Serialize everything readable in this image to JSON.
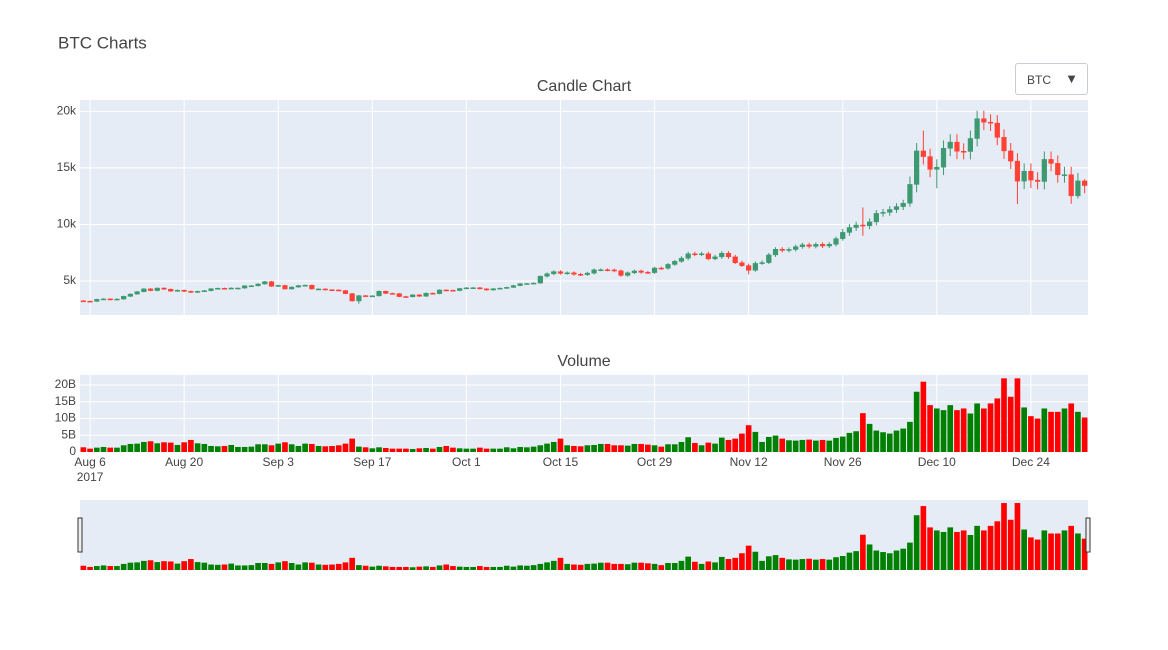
{
  "title": "BTC Charts",
  "controls": {
    "dropdown": "BTC"
  },
  "chart_data": [
    {
      "type": "candlestick",
      "title": "Candle Chart",
      "x": [
        "2017-08-05",
        "2017-08-06",
        "2017-08-07",
        "2017-08-08",
        "2017-08-09",
        "2017-08-10",
        "2017-08-11",
        "2017-08-12",
        "2017-08-13",
        "2017-08-14",
        "2017-08-15",
        "2017-08-16",
        "2017-08-17",
        "2017-08-18",
        "2017-08-19",
        "2017-08-20",
        "2017-08-21",
        "2017-08-22",
        "2017-08-23",
        "2017-08-24",
        "2017-08-25",
        "2017-08-26",
        "2017-08-27",
        "2017-08-28",
        "2017-08-29",
        "2017-08-30",
        "2017-08-31",
        "2017-09-01",
        "2017-09-02",
        "2017-09-03",
        "2017-09-04",
        "2017-09-05",
        "2017-09-06",
        "2017-09-07",
        "2017-09-08",
        "2017-09-09",
        "2017-09-10",
        "2017-09-11",
        "2017-09-12",
        "2017-09-13",
        "2017-09-14",
        "2017-09-15",
        "2017-09-16",
        "2017-09-17",
        "2017-09-18",
        "2017-09-19",
        "2017-09-20",
        "2017-09-21",
        "2017-09-22",
        "2017-09-23",
        "2017-09-24",
        "2017-09-25",
        "2017-09-26",
        "2017-09-27",
        "2017-09-28",
        "2017-09-29",
        "2017-09-30",
        "2017-10-01",
        "2017-10-02",
        "2017-10-03",
        "2017-10-04",
        "2017-10-05",
        "2017-10-06",
        "2017-10-07",
        "2017-10-08",
        "2017-10-09",
        "2017-10-10",
        "2017-10-11",
        "2017-10-12",
        "2017-10-13",
        "2017-10-14",
        "2017-10-15",
        "2017-10-16",
        "2017-10-17",
        "2017-10-18",
        "2017-10-19",
        "2017-10-20",
        "2017-10-21",
        "2017-10-22",
        "2017-10-23",
        "2017-10-24",
        "2017-10-25",
        "2017-10-26",
        "2017-10-27",
        "2017-10-28",
        "2017-10-29",
        "2017-10-30",
        "2017-10-31",
        "2017-11-01",
        "2017-11-02",
        "2017-11-03",
        "2017-11-04",
        "2017-11-05",
        "2017-11-06",
        "2017-11-07",
        "2017-11-08",
        "2017-11-09",
        "2017-11-10",
        "2017-11-11",
        "2017-11-12",
        "2017-11-13",
        "2017-11-14",
        "2017-11-15",
        "2017-11-16",
        "2017-11-17",
        "2017-11-18",
        "2017-11-19",
        "2017-11-20",
        "2017-11-21",
        "2017-11-22",
        "2017-11-23",
        "2017-11-24",
        "2017-11-25",
        "2017-11-26",
        "2017-11-27",
        "2017-11-28",
        "2017-11-29",
        "2017-11-30",
        "2017-12-01",
        "2017-12-02",
        "2017-12-03",
        "2017-12-04",
        "2017-12-05",
        "2017-12-06",
        "2017-12-07",
        "2017-12-08",
        "2017-12-09",
        "2017-12-10",
        "2017-12-11",
        "2017-12-12",
        "2017-12-13",
        "2017-12-14",
        "2017-12-15",
        "2017-12-16",
        "2017-12-17",
        "2017-12-18",
        "2017-12-19",
        "2017-12-20",
        "2017-12-21",
        "2017-12-22",
        "2017-12-23",
        "2017-12-24",
        "2017-12-25",
        "2017-12-26",
        "2017-12-27",
        "2017-12-28",
        "2017-12-29",
        "2017-12-30",
        "2017-12-31",
        "2018-01-01"
      ],
      "open": [
        3250,
        3220,
        3210,
        3380,
        3420,
        3340,
        3410,
        3650,
        3850,
        4060,
        4310,
        4160,
        4380,
        4280,
        4110,
        4190,
        4090,
        4000,
        4090,
        4150,
        4320,
        4360,
        4350,
        4380,
        4380,
        4580,
        4580,
        4740,
        4950,
        4540,
        4610,
        4300,
        4470,
        4600,
        4630,
        4300,
        4300,
        4230,
        4210,
        4160,
        3890,
        3240,
        3710,
        3690,
        3690,
        4100,
        3910,
        3890,
        3630,
        3610,
        3780,
        3660,
        3930,
        3890,
        4210,
        4190,
        4160,
        4340,
        4400,
        4410,
        4310,
        4210,
        4320,
        4370,
        4440,
        4600,
        4770,
        4780,
        4820,
        5430,
        5640,
        5830,
        5680,
        5730,
        5600,
        5570,
        5700,
        5990,
        6000,
        5980,
        5900,
        5500,
        5730,
        5890,
        5770,
        5750,
        6150,
        6130,
        6470,
        6740,
        7020,
        7410,
        7380,
        7410,
        6960,
        7140,
        7460,
        7140,
        6620,
        6360,
        5950,
        6560,
        6630,
        7310,
        7810,
        7710,
        7790,
        8040,
        8200,
        8070,
        8240,
        8100,
        8250,
        8750,
        9300,
        9730,
        9950,
        9880,
        10230,
        10980,
        11070,
        11320,
        11580,
        11880,
        13540,
        16500,
        16000,
        14870,
        15060,
        16730,
        17280,
        16470,
        16450,
        17600,
        19350,
        19040,
        18960,
        17700,
        16500,
        15600,
        13830,
        14700,
        13920,
        13800,
        15750,
        15400,
        14390,
        14400,
        12530,
        13850
      ],
      "high": [
        3310,
        3280,
        3440,
        3480,
        3480,
        3470,
        3710,
        3910,
        4120,
        4370,
        4370,
        4440,
        4440,
        4340,
        4250,
        4250,
        4150,
        4150,
        4210,
        4380,
        4420,
        4420,
        4440,
        4440,
        4640,
        4640,
        4800,
        5010,
        5010,
        4670,
        4670,
        4530,
        4660,
        4690,
        4690,
        4360,
        4360,
        4290,
        4270,
        4220,
        3950,
        3770,
        3770,
        3750,
        4160,
        4160,
        3970,
        3950,
        3690,
        3840,
        3840,
        3990,
        3990,
        4270,
        4270,
        4250,
        4400,
        4460,
        4470,
        4470,
        4370,
        4380,
        4430,
        4500,
        4660,
        4830,
        4840,
        4880,
        5490,
        5760,
        5950,
        5950,
        5850,
        5850,
        5720,
        5820,
        6110,
        6120,
        6120,
        6100,
        6020,
        5850,
        6010,
        6010,
        5890,
        6270,
        6270,
        6590,
        6860,
        7200,
        7590,
        7590,
        7590,
        7590,
        7320,
        7640,
        7640,
        7320,
        6800,
        6540,
        6740,
        6810,
        7490,
        7990,
        7990,
        7970,
        8220,
        8380,
        8380,
        8420,
        8420,
        8430,
        8930,
        9600,
        10030,
        10250,
        11500,
        10530,
        11280,
        11370,
        11620,
        11880,
        12180,
        14240,
        17200,
        18300,
        16700,
        15760,
        17430,
        17980,
        17980,
        17170,
        18300,
        20050,
        20050,
        19740,
        19660,
        18400,
        17200,
        16300,
        15400,
        15400,
        14620,
        16450,
        16450,
        16100,
        15100,
        15100,
        14550,
        14000
      ],
      "low": [
        3160,
        3150,
        3150,
        3320,
        3280,
        3280,
        3350,
        3590,
        3790,
        4000,
        4100,
        4100,
        4220,
        4050,
        4050,
        4030,
        3940,
        3940,
        4030,
        4090,
        4260,
        4290,
        4290,
        4320,
        4320,
        4520,
        4520,
        4680,
        4480,
        4480,
        4240,
        4240,
        4410,
        4540,
        4240,
        4240,
        4170,
        4150,
        4100,
        3830,
        3180,
        3000,
        3630,
        3630,
        3630,
        3850,
        3830,
        3570,
        3550,
        3550,
        3600,
        3600,
        3830,
        3830,
        4130,
        4100,
        4100,
        4280,
        4340,
        4250,
        4150,
        4150,
        4260,
        4310,
        4380,
        4540,
        4710,
        4720,
        4760,
        5310,
        5520,
        5560,
        5560,
        5480,
        5450,
        5450,
        5580,
        5870,
        5860,
        5780,
        5380,
        5380,
        5610,
        5650,
        5630,
        5630,
        6010,
        6010,
        6350,
        6620,
        6840,
        7200,
        7200,
        6840,
        6840,
        6960,
        6960,
        6500,
        6240,
        5600,
        5830,
        6440,
        6510,
        7130,
        7530,
        7530,
        7610,
        7860,
        7890,
        7890,
        7920,
        7920,
        8070,
        8570,
        9000,
        9430,
        9000,
        9580,
        9930,
        10680,
        10770,
        11020,
        11280,
        11580,
        12840,
        15300,
        14170,
        13200,
        14360,
        16030,
        15770,
        15750,
        15750,
        16900,
        18340,
        18260,
        17000,
        15800,
        14900,
        11800,
        13130,
        13220,
        13100,
        13100,
        14700,
        13690,
        13690,
        11830,
        12300,
        12750
      ],
      "close": [
        3220,
        3210,
        3380,
        3420,
        3340,
        3410,
        3650,
        3850,
        4060,
        4310,
        4160,
        4380,
        4280,
        4110,
        4190,
        4090,
        4000,
        4090,
        4150,
        4320,
        4360,
        4350,
        4380,
        4380,
        4580,
        4580,
        4740,
        4950,
        4540,
        4610,
        4300,
        4470,
        4600,
        4630,
        4300,
        4300,
        4230,
        4210,
        4160,
        3890,
        3240,
        3710,
        3690,
        3690,
        4100,
        3910,
        3890,
        3630,
        3610,
        3780,
        3660,
        3930,
        3890,
        4210,
        4190,
        4160,
        4340,
        4400,
        4410,
        4310,
        4210,
        4320,
        4370,
        4440,
        4600,
        4770,
        4780,
        4820,
        5430,
        5640,
        5830,
        5680,
        5730,
        5600,
        5570,
        5700,
        5990,
        6000,
        5980,
        5900,
        5500,
        5730,
        5890,
        5770,
        5750,
        6150,
        6130,
        6470,
        6740,
        7020,
        7410,
        7380,
        7410,
        6960,
        7140,
        7460,
        7140,
        6620,
        6360,
        5950,
        6560,
        6630,
        7310,
        7810,
        7710,
        7790,
        8040,
        8200,
        8070,
        8240,
        8100,
        8250,
        8750,
        9300,
        9730,
        9950,
        9880,
        10230,
        10980,
        11070,
        11320,
        11580,
        11880,
        13540,
        16500,
        16000,
        14870,
        15060,
        16730,
        17280,
        16470,
        16450,
        17600,
        19350,
        19040,
        18960,
        17700,
        16500,
        15600,
        13830,
        14700,
        13920,
        13800,
        15750,
        15400,
        14390,
        14400,
        12530,
        13850,
        13440
      ],
      "increasing_color": "#3d9970",
      "decreasing_color": "#ff4136",
      "xlim": [
        "2017-08-04 12:00",
        "2018-01-01 12:00"
      ],
      "xticks": [
        {
          "value": "2017-08-06",
          "label": "Aug 6"
        },
        {
          "value": "2017-08-20",
          "label": "Aug 20"
        },
        {
          "value": "2017-09-03",
          "label": "Sep 3"
        },
        {
          "value": "2017-09-17",
          "label": "Sep 17"
        },
        {
          "value": "2017-10-01",
          "label": "Oct 1"
        },
        {
          "value": "2017-10-15",
          "label": "Oct 15"
        },
        {
          "value": "2017-10-29",
          "label": "Oct 29"
        },
        {
          "value": "2017-11-12",
          "label": "Nov 12"
        },
        {
          "value": "2017-11-26",
          "label": "Nov 26"
        },
        {
          "value": "2017-12-10",
          "label": "Dec 10"
        },
        {
          "value": "2017-12-24",
          "label": "Dec 24"
        }
      ],
      "x_year_label": "2017",
      "ylim": [
        2000,
        21000
      ],
      "yticks": [
        {
          "value": 5000,
          "label": "5k"
        },
        {
          "value": 10000,
          "label": "10k"
        },
        {
          "value": 15000,
          "label": "15k"
        },
        {
          "value": 20000,
          "label": "20k"
        }
      ],
      "grid": true
    },
    {
      "type": "bar",
      "title": "Volume",
      "values": [
        1.4,
        1.0,
        1.3,
        1.5,
        1.3,
        1.3,
        2.0,
        2.4,
        2.5,
        3.0,
        3.2,
        2.6,
        2.9,
        2.8,
        2.1,
        2.9,
        3.6,
        2.6,
        2.4,
        1.8,
        1.7,
        1.8,
        2.1,
        1.5,
        1.5,
        1.6,
        2.3,
        2.3,
        2.0,
        2.5,
        2.9,
        2.3,
        1.8,
        2.5,
        2.4,
        1.8,
        1.7,
        1.8,
        2.0,
        2.5,
        4.0,
        1.6,
        1.4,
        1.1,
        1.4,
        1.2,
        1.0,
        1.0,
        1.0,
        0.9,
        1.1,
        1.2,
        1.0,
        1.5,
        1.8,
        1.3,
        1.1,
        1.0,
        1.0,
        1.3,
        1.0,
        1.0,
        1.0,
        1.4,
        1.1,
        1.5,
        1.4,
        1.6,
        2.0,
        2.5,
        3.0,
        4.0,
        2.0,
        1.8,
        1.7,
        2.0,
        2.1,
        2.4,
        2.4,
        2.0,
        2.0,
        1.9,
        2.4,
        2.4,
        2.2,
        2.0,
        1.6,
        2.3,
        2.3,
        3.0,
        4.4,
        2.7,
        2.0,
        2.8,
        2.5,
        4.3,
        3.6,
        4.0,
        5.5,
        8.0,
        6.0,
        3.0,
        4.5,
        4.9,
        4.0,
        3.5,
        3.4,
        3.6,
        3.7,
        3.4,
        3.6,
        3.4,
        4.2,
        4.6,
        5.7,
        6.2,
        11.6,
        8.4,
        6.4,
        5.9,
        5.5,
        6.4,
        7.0,
        9.0,
        18,
        21,
        14,
        13,
        12.5,
        14,
        12.5,
        13,
        11.5,
        14.5,
        13,
        14.5,
        16,
        22,
        16.5,
        22,
        13.3,
        10.7,
        10,
        13,
        12,
        12,
        13,
        14.5,
        12,
        10.3
      ],
      "increasing_color": "#008000",
      "decreasing_color": "#ff0000",
      "ylim": [
        0,
        23
      ],
      "yticks": [
        0,
        {
          "value": 5,
          "label": "5B"
        },
        {
          "value": 10,
          "label": "10B"
        },
        {
          "value": 15,
          "label": "15B"
        },
        {
          "value": 20,
          "label": "20B"
        }
      ],
      "grid": true,
      "rangeslider": true
    }
  ]
}
